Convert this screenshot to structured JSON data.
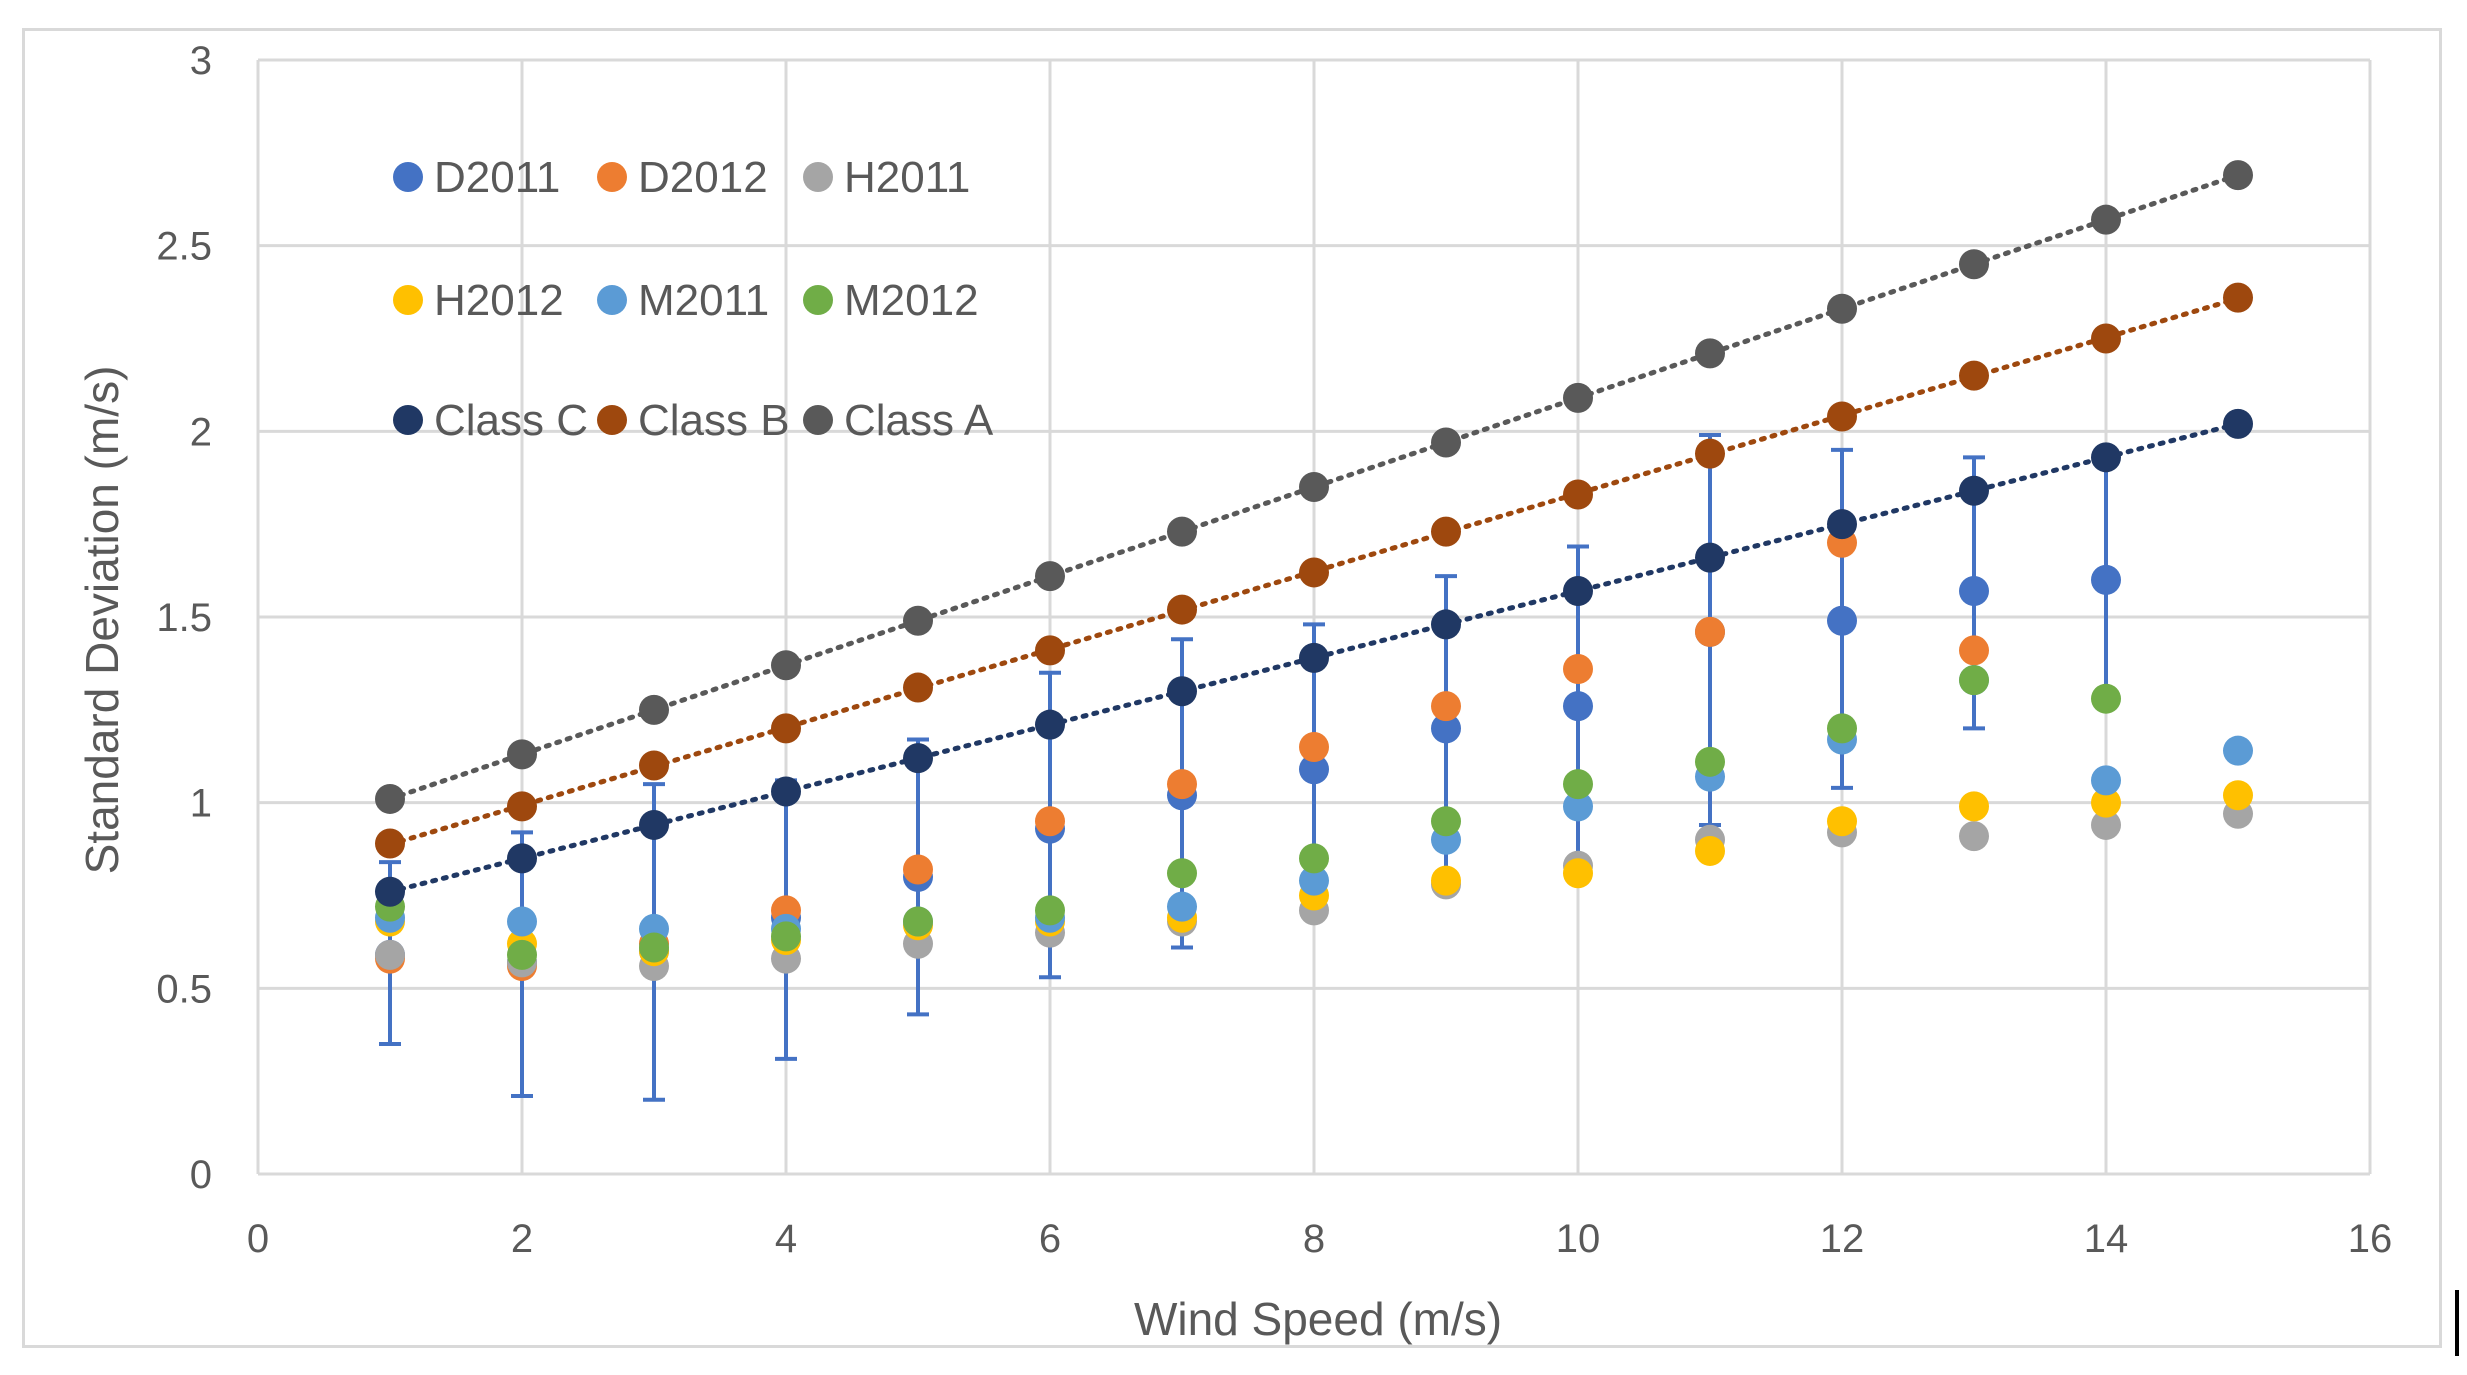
{
  "chart_data": {
    "type": "scatter",
    "title": "",
    "xlabel": "Wind Speed (m/s)",
    "ylabel": "Standard Deviation (m/s)",
    "xlim": [
      0,
      16
    ],
    "ylim": [
      0,
      3
    ],
    "x_ticks": [
      "0",
      "2",
      "4",
      "6",
      "8",
      "10",
      "12",
      "14",
      "16"
    ],
    "y_ticks": [
      "0",
      "0.5",
      "1",
      "1.5",
      "2",
      "2.5",
      "3"
    ],
    "grid": true,
    "legend_position": "top-left",
    "series": [
      {
        "name": "D2011",
        "color": "#4472c4",
        "x": [
          1,
          2,
          3,
          4,
          5,
          6,
          7,
          8,
          9,
          10,
          11,
          12,
          13,
          14
        ],
        "y": [
          0.59,
          0.57,
          0.6,
          0.69,
          0.8,
          0.93,
          1.02,
          1.09,
          1.2,
          1.26,
          1.46,
          1.49,
          1.57,
          1.6
        ],
        "error_low": [
          0.35,
          0.21,
          0.2,
          0.31,
          0.43,
          0.53,
          0.61,
          0.71,
          0.78,
          0.82,
          0.94,
          1.04,
          1.2,
          1.28
        ],
        "error_high": [
          0.84,
          0.92,
          1.05,
          1.06,
          1.17,
          1.35,
          1.44,
          1.48,
          1.61,
          1.69,
          1.99,
          1.95,
          1.93,
          1.93
        ]
      },
      {
        "name": "D2012",
        "color": "#ed7d31",
        "x": [
          1,
          2,
          3,
          4,
          5,
          6,
          7,
          8,
          9,
          10,
          11,
          12,
          13
        ],
        "y": [
          0.58,
          0.56,
          0.62,
          0.71,
          0.82,
          0.95,
          1.05,
          1.15,
          1.26,
          1.36,
          1.46,
          1.7,
          1.41
        ]
      },
      {
        "name": "H2011",
        "color": "#a5a5a5",
        "x": [
          1,
          2,
          3,
          4,
          5,
          6,
          7,
          8,
          9,
          10,
          11,
          12,
          13,
          14,
          15
        ],
        "y": [
          0.59,
          0.57,
          0.56,
          0.58,
          0.62,
          0.65,
          0.68,
          0.71,
          0.78,
          0.83,
          0.9,
          0.92,
          0.91,
          0.94,
          0.97
        ]
      },
      {
        "name": "H2012",
        "color": "#ffc000",
        "x": [
          1,
          2,
          3,
          4,
          5,
          6,
          7,
          8,
          9,
          10,
          11,
          12,
          13,
          14,
          15
        ],
        "y": [
          0.68,
          0.62,
          0.6,
          0.63,
          0.67,
          0.68,
          0.69,
          0.75,
          0.79,
          0.81,
          0.87,
          0.95,
          0.99,
          1.0,
          1.02
        ]
      },
      {
        "name": "M2011",
        "color": "#5b9bd5",
        "x": [
          1,
          2,
          3,
          4,
          5,
          6,
          7,
          8,
          9,
          10,
          11,
          12,
          13,
          14,
          15
        ],
        "y": [
          0.69,
          0.68,
          0.66,
          0.66,
          0.68,
          0.69,
          0.72,
          0.79,
          0.9,
          0.99,
          1.07,
          1.17,
          1.33,
          1.06,
          1.14
        ]
      },
      {
        "name": "M2012",
        "color": "#70ad47",
        "x": [
          1,
          2,
          3,
          4,
          5,
          6,
          7,
          8,
          9,
          10,
          11,
          12,
          13,
          14
        ],
        "y": [
          0.72,
          0.59,
          0.61,
          0.64,
          0.68,
          0.71,
          0.81,
          0.85,
          0.95,
          1.05,
          1.11,
          1.2,
          1.33,
          1.28
        ]
      },
      {
        "name": "Class C",
        "color": "#203864",
        "trendline": true,
        "x": [
          1,
          2,
          3,
          4,
          5,
          6,
          7,
          8,
          9,
          10,
          11,
          12,
          13,
          14,
          15
        ],
        "y": [
          0.76,
          0.85,
          0.94,
          1.03,
          1.12,
          1.21,
          1.3,
          1.39,
          1.48,
          1.57,
          1.66,
          1.75,
          1.84,
          1.93,
          2.02
        ]
      },
      {
        "name": "Class B",
        "color": "#9e480e",
        "trendline": true,
        "x": [
          1,
          2,
          3,
          4,
          5,
          6,
          7,
          8,
          9,
          10,
          11,
          12,
          13,
          14,
          15
        ],
        "y": [
          0.89,
          0.99,
          1.1,
          1.2,
          1.31,
          1.41,
          1.52,
          1.62,
          1.73,
          1.83,
          1.94,
          2.04,
          2.15,
          2.25,
          2.36
        ]
      },
      {
        "name": "Class A",
        "color": "#595959",
        "trendline": true,
        "x": [
          1,
          2,
          3,
          4,
          5,
          6,
          7,
          8,
          9,
          10,
          11,
          12,
          13,
          14,
          15
        ],
        "y": [
          1.01,
          1.13,
          1.25,
          1.37,
          1.49,
          1.61,
          1.73,
          1.85,
          1.97,
          2.09,
          2.21,
          2.33,
          2.45,
          2.57,
          2.69
        ]
      }
    ]
  }
}
